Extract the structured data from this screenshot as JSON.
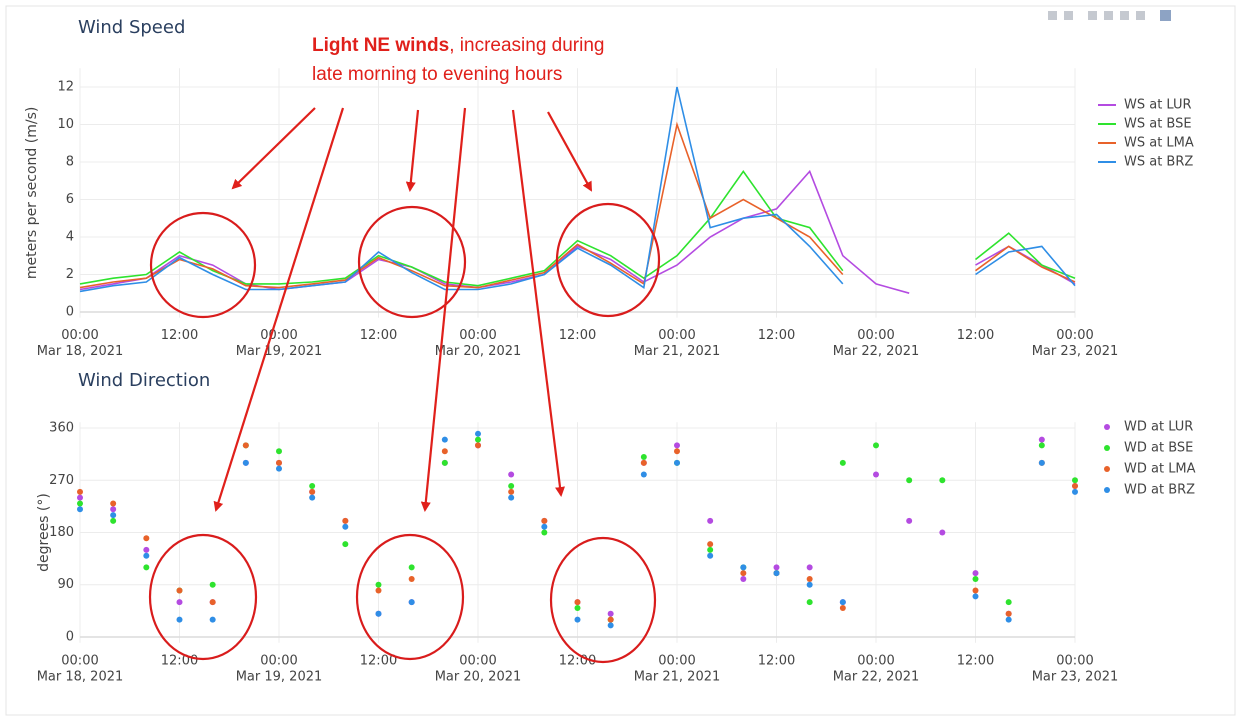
{
  "annotation": {
    "emphasis": "Light NE winds",
    "rest": [
      ", increasing during",
      "late morning to evening hours"
    ]
  },
  "chart_data": [
    {
      "type": "line",
      "title": "Wind Speed",
      "y_label": "meters per second (m/s)",
      "x": [
        "2021-03-18 00:00",
        "2021-03-18 04:00",
        "2021-03-18 08:00",
        "2021-03-18 12:00",
        "2021-03-18 16:00",
        "2021-03-18 20:00",
        "2021-03-19 00:00",
        "2021-03-19 04:00",
        "2021-03-19 08:00",
        "2021-03-19 12:00",
        "2021-03-19 16:00",
        "2021-03-19 20:00",
        "2021-03-20 00:00",
        "2021-03-20 04:00",
        "2021-03-20 08:00",
        "2021-03-20 12:00",
        "2021-03-20 16:00",
        "2021-03-20 20:00",
        "2021-03-21 00:00",
        "2021-03-21 04:00",
        "2021-03-21 08:00",
        "2021-03-21 12:00",
        "2021-03-21 16:00",
        "2021-03-21 20:00",
        "2021-03-22 00:00",
        "2021-03-22 04:00",
        "2021-03-22 08:00",
        "2021-03-22 12:00",
        "2021-03-22 16:00",
        "2021-03-22 20:00",
        "2021-03-23 00:00"
      ],
      "series": [
        {
          "name": "WS at LUR",
          "color": "#b44be1",
          "values": [
            1.2,
            1.5,
            1.8,
            3.0,
            2.5,
            1.5,
            1.2,
            1.4,
            1.6,
            2.8,
            2.4,
            1.5,
            1.3,
            1.6,
            2.0,
            3.5,
            2.8,
            1.6,
            2.5,
            4.0,
            5.0,
            5.5,
            7.5,
            3.0,
            1.5,
            1.0,
            null,
            2.5,
            3.5,
            2.5,
            1.5
          ]
        },
        {
          "name": "WS at BSE",
          "color": "#2ee32e",
          "values": [
            1.5,
            1.8,
            2.0,
            3.2,
            2.2,
            1.5,
            1.5,
            1.6,
            1.8,
            3.0,
            2.4,
            1.6,
            1.4,
            1.8,
            2.2,
            3.8,
            3.0,
            1.8,
            3.0,
            5.0,
            7.5,
            5.0,
            4.5,
            2.2,
            null,
            null,
            null,
            2.8,
            4.2,
            2.5,
            1.8
          ]
        },
        {
          "name": "WS at LMA",
          "color": "#e8622a",
          "values": [
            1.3,
            1.6,
            1.8,
            2.8,
            2.3,
            1.4,
            1.3,
            1.5,
            1.7,
            2.9,
            2.2,
            1.4,
            1.3,
            1.7,
            2.1,
            3.6,
            2.6,
            1.5,
            10.0,
            5.0,
            6.0,
            5.0,
            4.0,
            2.0,
            null,
            null,
            null,
            2.2,
            3.5,
            2.4,
            1.6
          ]
        },
        {
          "name": "WS at BRZ",
          "color": "#2f8ee6",
          "values": [
            1.1,
            1.4,
            1.6,
            2.9,
            2.0,
            1.2,
            1.2,
            1.4,
            1.6,
            3.2,
            2.1,
            1.2,
            1.2,
            1.5,
            2.0,
            3.4,
            2.5,
            1.3,
            12.0,
            4.5,
            5.0,
            5.2,
            3.5,
            1.5,
            null,
            null,
            null,
            2.0,
            3.2,
            3.5,
            1.4
          ]
        }
      ],
      "xlim": [
        "2021-03-18 00:00",
        "2021-03-23 00:00"
      ],
      "xticks": [
        {
          "value": "2021-03-18 00:00",
          "label": "00:00",
          "date": "Mar 18, 2021"
        },
        {
          "value": "2021-03-18 12:00",
          "label": "12:00"
        },
        {
          "value": "2021-03-19 00:00",
          "label": "00:00",
          "date": "Mar 19, 2021"
        },
        {
          "value": "2021-03-19 12:00",
          "label": "12:00"
        },
        {
          "value": "2021-03-20 00:00",
          "label": "00:00",
          "date": "Mar 20, 2021"
        },
        {
          "value": "2021-03-20 12:00",
          "label": "12:00"
        },
        {
          "value": "2021-03-21 00:00",
          "label": "00:00",
          "date": "Mar 21, 2021"
        },
        {
          "value": "2021-03-21 12:00",
          "label": "12:00"
        },
        {
          "value": "2021-03-22 00:00",
          "label": "00:00",
          "date": "Mar 22, 2021"
        },
        {
          "value": "2021-03-22 12:00",
          "label": "12:00"
        },
        {
          "value": "2021-03-23 00:00",
          "label": "00:00",
          "date": "Mar 23, 2021"
        }
      ],
      "ylim": [
        -0.3,
        13
      ],
      "yticks": [
        0,
        2,
        4,
        6,
        8,
        10,
        12
      ],
      "grid": true
    },
    {
      "type": "scatter",
      "title": "Wind Direction",
      "y_label": "degrees (°)",
      "x": [
        "2021-03-18 00:00",
        "2021-03-18 04:00",
        "2021-03-18 08:00",
        "2021-03-18 12:00",
        "2021-03-18 16:00",
        "2021-03-18 20:00",
        "2021-03-19 00:00",
        "2021-03-19 04:00",
        "2021-03-19 08:00",
        "2021-03-19 12:00",
        "2021-03-19 16:00",
        "2021-03-19 20:00",
        "2021-03-20 00:00",
        "2021-03-20 04:00",
        "2021-03-20 08:00",
        "2021-03-20 12:00",
        "2021-03-20 16:00",
        "2021-03-20 20:00",
        "2021-03-21 00:00",
        "2021-03-21 04:00",
        "2021-03-21 08:00",
        "2021-03-21 12:00",
        "2021-03-21 16:00",
        "2021-03-21 20:00",
        "2021-03-22 00:00",
        "2021-03-22 04:00",
        "2021-03-22 08:00",
        "2021-03-22 12:00",
        "2021-03-22 16:00",
        "2021-03-22 20:00",
        "2021-03-23 00:00"
      ],
      "series": [
        {
          "name": "WD at LUR",
          "color": "#b44be1",
          "values": [
            240,
            220,
            150,
            60,
            60,
            300,
            300,
            250,
            200,
            40,
            60,
            300,
            330,
            280,
            200,
            60,
            40,
            300,
            330,
            200,
            100,
            120,
            120,
            60,
            280,
            200,
            180,
            110,
            40,
            340,
            260
          ]
        },
        {
          "name": "WD at BSE",
          "color": "#2ee32e",
          "values": [
            230,
            200,
            120,
            80,
            90,
            330,
            320,
            260,
            160,
            90,
            120,
            300,
            340,
            260,
            180,
            50,
            30,
            310,
            300,
            150,
            120,
            110,
            60,
            300,
            330,
            270,
            270,
            100,
            60,
            330,
            270
          ]
        },
        {
          "name": "WD at LMA",
          "color": "#e8622a",
          "values": [
            250,
            230,
            170,
            80,
            60,
            330,
            300,
            250,
            200,
            80,
            100,
            320,
            330,
            250,
            200,
            60,
            30,
            300,
            320,
            160,
            110,
            110,
            100,
            50,
            null,
            null,
            null,
            80,
            40,
            300,
            260
          ]
        },
        {
          "name": "WD at BRZ",
          "color": "#2f8ee6",
          "values": [
            220,
            210,
            140,
            30,
            30,
            300,
            290,
            240,
            190,
            40,
            60,
            340,
            350,
            240,
            190,
            30,
            20,
            280,
            300,
            140,
            120,
            110,
            90,
            60,
            null,
            null,
            null,
            70,
            30,
            300,
            250
          ]
        }
      ],
      "xlim": [
        "2021-03-18 00:00",
        "2021-03-23 00:00"
      ],
      "xticks": [
        {
          "value": "2021-03-18 00:00",
          "label": "00:00",
          "date": "Mar 18, 2021"
        },
        {
          "value": "2021-03-18 12:00",
          "label": "12:00"
        },
        {
          "value": "2021-03-19 00:00",
          "label": "00:00",
          "date": "Mar 19, 2021"
        },
        {
          "value": "2021-03-19 12:00",
          "label": "12:00"
        },
        {
          "value": "2021-03-20 00:00",
          "label": "00:00",
          "date": "Mar 20, 2021"
        },
        {
          "value": "2021-03-20 12:00",
          "label": "12:00"
        },
        {
          "value": "2021-03-21 00:00",
          "label": "00:00",
          "date": "Mar 21, 2021"
        },
        {
          "value": "2021-03-21 12:00",
          "label": "12:00"
        },
        {
          "value": "2021-03-22 00:00",
          "label": "00:00",
          "date": "Mar 22, 2021"
        },
        {
          "value": "2021-03-22 12:00",
          "label": "12:00"
        },
        {
          "value": "2021-03-23 00:00",
          "label": "00:00",
          "date": "Mar 23, 2021"
        }
      ],
      "ylim": [
        -10,
        370
      ],
      "yticks": [
        0,
        90,
        180,
        270,
        360
      ],
      "grid": true
    }
  ]
}
